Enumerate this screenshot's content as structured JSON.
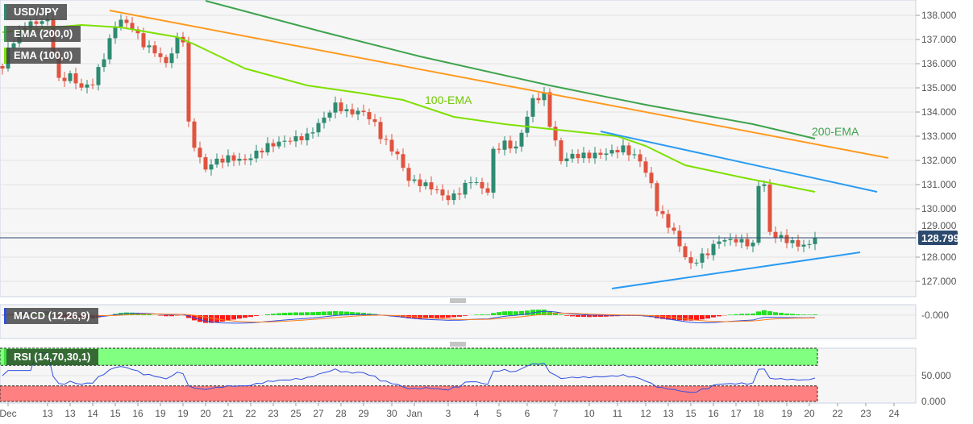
{
  "chart_data": {
    "type": "candlestick",
    "symbol": "USD/JPY",
    "indicators": {
      "ema200_label": "EMA (200,0)",
      "ema100_label": "EMA (100,0)",
      "macd_label": "MACD (12,26,9)",
      "rsi_label": "RSI (14,70,30,1)"
    },
    "annotations": {
      "ema100": "100-EMA",
      "ema200": "200-EMA"
    },
    "current_price": 128.799,
    "current_price_label": "128.799",
    "y_ticks": [
      "138.000",
      "137.000",
      "136.000",
      "135.000",
      "134.000",
      "133.000",
      "132.000",
      "131.000",
      "130.000",
      "129.000",
      "128.000",
      "127.000"
    ],
    "ylim": [
      126.4,
      138.6
    ],
    "macd_tick": "-0.000",
    "rsi_ticks": [
      "50.000",
      "0.000"
    ],
    "rsi_levels": [
      70,
      30
    ],
    "x_ticks": [
      "Dec",
      "13",
      "13",
      "14",
      "15",
      "16",
      "19",
      "19",
      "20",
      "21",
      "22",
      "23",
      "25",
      "27",
      "28",
      "29",
      "30",
      "Jan",
      "3",
      "4",
      "5",
      "6",
      "7",
      "10",
      "11",
      "12",
      "13",
      "15",
      "16",
      "17",
      "18",
      "19",
      "20",
      "22",
      "23",
      "24"
    ],
    "x_tick_bars": [
      1,
      8,
      12,
      16,
      20,
      24,
      28,
      32,
      36,
      40,
      44,
      48,
      52,
      56,
      60,
      64,
      69,
      73,
      79,
      84,
      88,
      93,
      98,
      104,
      109,
      114,
      118,
      122,
      126,
      130,
      134,
      139,
      143,
      148,
      153,
      158
    ],
    "price_path": [
      [
        0,
        135.8
      ],
      [
        1,
        136.6
      ],
      [
        4,
        137.6
      ],
      [
        8,
        137.8
      ],
      [
        10,
        135.3
      ],
      [
        12,
        135.5
      ],
      [
        14,
        135.0
      ],
      [
        16,
        135.2
      ],
      [
        18,
        136.3
      ],
      [
        20,
        137.6
      ],
      [
        21,
        137.8
      ],
      [
        23,
        137.5
      ],
      [
        25,
        136.8
      ],
      [
        27,
        136.5
      ],
      [
        29,
        136.0
      ],
      [
        31,
        137.0
      ],
      [
        32,
        137.0
      ],
      [
        33,
        133.5
      ],
      [
        34,
        132.6
      ],
      [
        36,
        131.6
      ],
      [
        37,
        131.9
      ],
      [
        40,
        132.1
      ],
      [
        43,
        132.0
      ],
      [
        47,
        132.6
      ],
      [
        50,
        132.8
      ],
      [
        54,
        133.0
      ],
      [
        56,
        133.5
      ],
      [
        59,
        134.3
      ],
      [
        61,
        134.0
      ],
      [
        64,
        134.0
      ],
      [
        66,
        133.5
      ],
      [
        67,
        133.0
      ],
      [
        70,
        132.2
      ],
      [
        72,
        131.2
      ],
      [
        76,
        130.9
      ],
      [
        79,
        130.4
      ],
      [
        81,
        130.7
      ],
      [
        83,
        131.2
      ],
      [
        86,
        130.7
      ],
      [
        87,
        132.4
      ],
      [
        89,
        132.7
      ],
      [
        91,
        132.5
      ],
      [
        94,
        134.5
      ],
      [
        96,
        134.7
      ],
      [
        97,
        133.5
      ],
      [
        99,
        132.0
      ],
      [
        101,
        132.2
      ],
      [
        104,
        132.2
      ],
      [
        107,
        132.3
      ],
      [
        110,
        132.5
      ],
      [
        113,
        132.0
      ],
      [
        115,
        131.0
      ],
      [
        116,
        130.0
      ],
      [
        119,
        129.0
      ],
      [
        121,
        128.0
      ],
      [
        122,
        127.7
      ],
      [
        125,
        128.2
      ],
      [
        127,
        128.7
      ],
      [
        130,
        128.7
      ],
      [
        133,
        128.5
      ],
      [
        134,
        131.0
      ],
      [
        135,
        131.0
      ],
      [
        136,
        129.0
      ],
      [
        139,
        128.7
      ],
      [
        141,
        128.5
      ],
      [
        143,
        128.5
      ],
      [
        144,
        128.8
      ]
    ],
    "ema200": [
      [
        36,
        138.6
      ],
      [
        57,
        137.3
      ],
      [
        74,
        136.3
      ],
      [
        97,
        135.1
      ],
      [
        114,
        134.3
      ],
      [
        133,
        133.5
      ],
      [
        144,
        132.9
      ]
    ],
    "ema100": [
      [
        0,
        137.3
      ],
      [
        9,
        137.5
      ],
      [
        14,
        137.6
      ],
      [
        21,
        137.5
      ],
      [
        31,
        137.1
      ],
      [
        34,
        136.8
      ],
      [
        43,
        135.8
      ],
      [
        54,
        135.1
      ],
      [
        63,
        134.8
      ],
      [
        71,
        134.5
      ],
      [
        80,
        133.8
      ],
      [
        89,
        133.5
      ],
      [
        97,
        133.3
      ],
      [
        109,
        133.0
      ],
      [
        114,
        132.6
      ],
      [
        121,
        131.8
      ],
      [
        131,
        131.3
      ],
      [
        144,
        130.7
      ]
    ],
    "trendlines": [
      {
        "name": "resistance-orange",
        "color": "#ff9a1f",
        "points": [
          [
            19,
            138.2
          ],
          [
            157,
            132.1
          ]
        ]
      },
      {
        "name": "resistance-blue",
        "color": "#2b9bf2",
        "points": [
          [
            106,
            133.2
          ],
          [
            155,
            130.7
          ]
        ]
      },
      {
        "name": "support-blue",
        "color": "#2b9bf2",
        "points": [
          [
            108,
            126.7
          ],
          [
            152,
            128.2
          ]
        ]
      }
    ],
    "colors": {
      "up": "#2e8b72",
      "down": "#e0533f",
      "ema200": "#3fa34d",
      "ema100": "#7ee000",
      "macd": "#2f4fe0",
      "signal": "#ff7f1f",
      "price_tag": "#2c4a6e"
    }
  }
}
